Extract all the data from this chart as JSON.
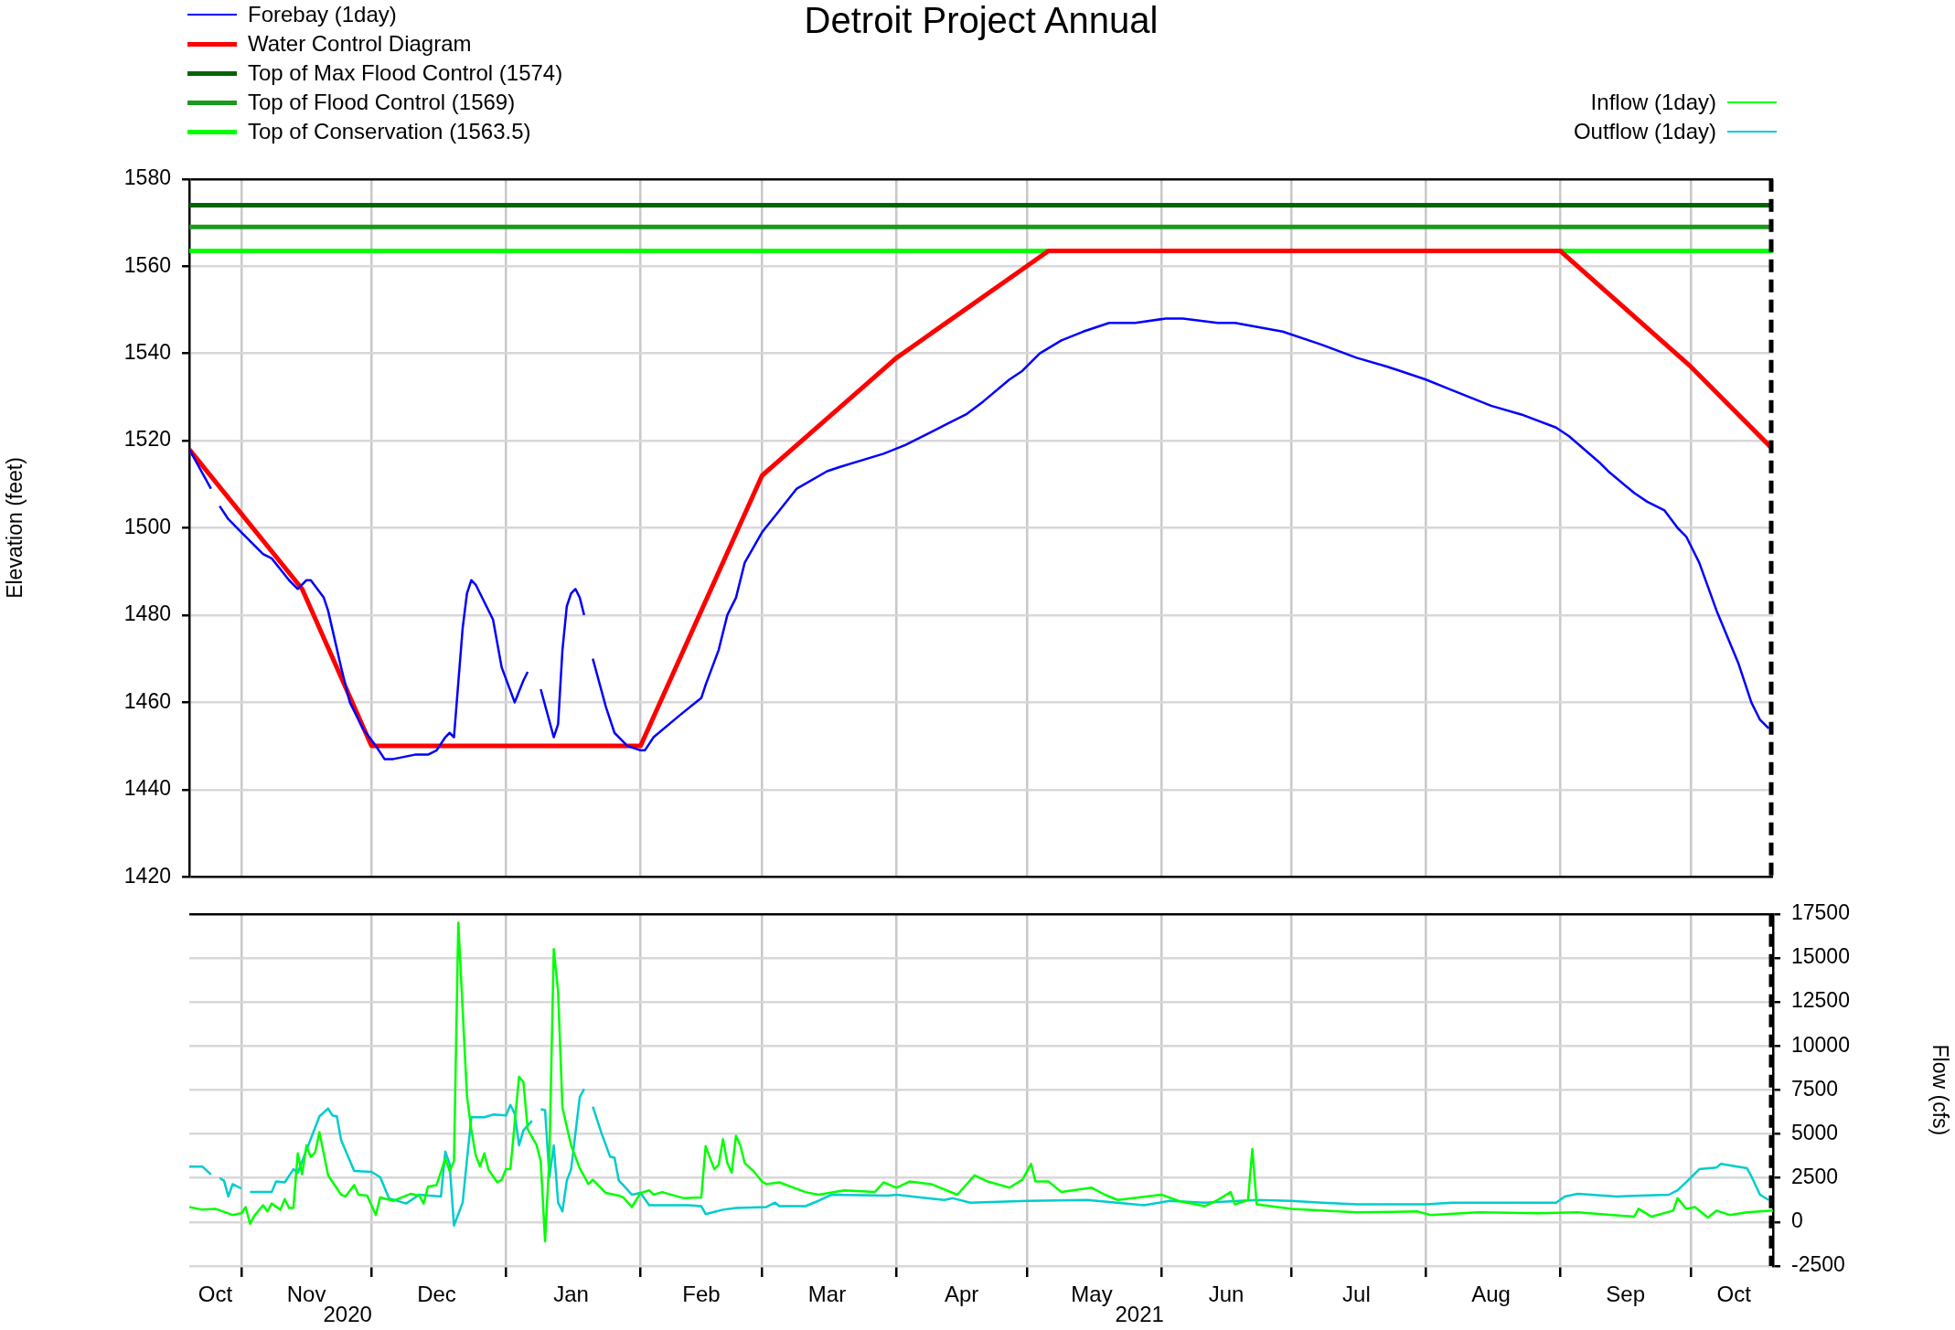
{
  "chart_data": [
    {
      "type": "line",
      "title": "Detroit Project Annual",
      "ylabel": "Elevation (feet)",
      "legend": "top left",
      "grid": true,
      "tick_labels": "y",
      "xlim": [
        "2020-10-20",
        "2021-10-20"
      ],
      "xticks": [
        {
          "value": "2020-11-01",
          "label": null
        },
        {
          "value": "2020-12-01",
          "label": null
        },
        {
          "value": "2021-01-01",
          "label": null
        },
        {
          "value": "2021-02-01",
          "label": null
        },
        {
          "value": "2021-03-01",
          "label": null
        },
        {
          "value": "2021-04-01",
          "label": null
        },
        {
          "value": "2021-05-01",
          "label": null
        },
        {
          "value": "2021-06-01",
          "label": null
        },
        {
          "value": "2021-07-01",
          "label": null
        },
        {
          "value": "2021-08-01",
          "label": null
        },
        {
          "value": "2021-09-01",
          "label": null
        },
        {
          "value": "2021-10-01",
          "label": null
        }
      ],
      "ylim": [
        1420,
        1580
      ],
      "yticks": [
        1420,
        1440,
        1460,
        1480,
        1500,
        1520,
        1540,
        1560,
        1580
      ],
      "ref_lines": [
        {
          "axis": "x",
          "value": "2021-10-20",
          "color": "#000000",
          "line_style": "dashed"
        }
      ],
      "series": [
        {
          "name": "Forebay (1day)",
          "color": "#0000ff",
          "x": [
            "2020-10-20",
            "2020-10-25",
            "2020-10-26",
            "2020-10-27",
            "2020-10-29",
            "2020-11-01",
            "2020-11-06",
            "2020-11-08",
            "2020-11-12",
            "2020-11-14",
            "2020-11-16",
            "2020-11-17",
            "2020-11-20",
            "2020-11-21",
            "2020-11-24",
            "2020-11-26",
            "2020-11-29",
            "2020-12-02",
            "2020-12-04",
            "2020-12-06",
            "2020-12-11",
            "2020-12-14",
            "2020-12-16",
            "2020-12-18",
            "2020-12-19",
            "2020-12-20",
            "2020-12-22",
            "2020-12-23",
            "2020-12-24",
            "2020-12-25",
            "2020-12-29",
            "2020-12-31",
            "2021-01-03",
            "2021-01-05",
            "2021-01-06",
            "2021-01-07",
            "2021-01-09",
            "2021-01-12",
            "2021-01-13",
            "2021-01-14",
            "2021-01-15",
            "2021-01-16",
            "2021-01-17",
            "2021-01-18",
            "2021-01-19",
            "2021-01-20",
            "2021-01-21",
            "2021-01-24",
            "2021-01-26",
            "2021-01-29",
            "2021-02-01",
            "2021-02-02",
            "2021-02-04",
            "2021-02-10",
            "2021-02-15",
            "2021-02-16",
            "2021-02-19",
            "2021-02-21",
            "2021-02-23",
            "2021-02-25",
            "2021-03-01",
            "2021-03-05",
            "2021-03-09",
            "2021-03-16",
            "2021-03-19",
            "2021-03-29",
            "2021-04-03",
            "2021-04-09",
            "2021-04-13",
            "2021-04-17",
            "2021-04-21",
            "2021-04-27",
            "2021-04-30",
            "2021-05-04",
            "2021-05-09",
            "2021-05-14",
            "2021-05-20",
            "2021-05-26",
            "2021-06-02",
            "2021-06-06",
            "2021-06-14",
            "2021-06-18",
            "2021-06-29",
            "2021-07-08",
            "2021-07-16",
            "2021-07-23",
            "2021-08-01",
            "2021-08-06",
            "2021-08-11",
            "2021-08-16",
            "2021-08-23",
            "2021-08-31",
            "2021-09-03",
            "2021-09-10",
            "2021-09-12",
            "2021-09-18",
            "2021-09-21",
            "2021-09-25",
            "2021-09-28",
            "2021-09-30",
            "2021-10-03",
            "2021-10-07",
            "2021-10-12",
            "2021-10-15",
            "2021-10-17",
            "2021-10-19"
          ],
          "values": [
            1518,
            1509,
            null,
            1505,
            1502,
            1499,
            1494,
            1493,
            1488,
            1486,
            1488,
            1488,
            1484,
            1481,
            1468,
            1460,
            1454,
            1450,
            1447,
            1447,
            1448,
            1448,
            1449,
            1452,
            1453,
            1452,
            1477,
            1485,
            1488,
            1487,
            1479,
            1468,
            1460,
            1465,
            1467,
            null,
            1463,
            1452,
            1455,
            1472,
            1482,
            1485,
            1486,
            1484,
            1480,
            null,
            1470,
            1459,
            1453,
            1450,
            1449,
            1449,
            1452,
            1457,
            1461,
            1464,
            1472,
            1480,
            1484,
            1492,
            1499,
            1504,
            1509,
            1513,
            1514,
            1517,
            1519,
            1522,
            1524,
            1526,
            1529,
            1534,
            1536,
            1540,
            1543,
            1545,
            1547,
            1547,
            1548,
            1548,
            1547,
            1547,
            1545,
            1542,
            1539,
            1537,
            1534,
            1532,
            1530,
            1528,
            1526,
            1523,
            1521,
            1515,
            1513,
            1508,
            1506,
            1504,
            1500,
            1498,
            1492,
            1481,
            1469,
            1460,
            1456,
            1454
          ]
        },
        {
          "name": "Water Control Diagram",
          "color": "#ff0000",
          "x": [
            "2020-10-20",
            "2020-11-15",
            "2020-12-01",
            "2021-02-01",
            "2021-03-01",
            "2021-04-01",
            "2021-05-01",
            "2021-05-06",
            "2021-09-01",
            "2021-10-01",
            "2021-10-20"
          ],
          "values": [
            1518,
            1486,
            1450,
            1450,
            1512,
            1539,
            1560,
            1563.5,
            1563.5,
            1537,
            1518
          ]
        },
        {
          "name": "Top of Max Flood Control (1574)",
          "color": "#006400",
          "x": [
            "2020-10-20",
            "2021-10-20"
          ],
          "values": [
            1574,
            1574
          ]
        },
        {
          "name": "Top of Flood Control (1569)",
          "color": "#1a9a1a",
          "x": [
            "2020-10-20",
            "2021-10-20"
          ],
          "values": [
            1569,
            1569
          ]
        },
        {
          "name": "Top of Conservation (1563.5)",
          "color": "#00ff00",
          "x": [
            "2020-10-20",
            "2021-10-20"
          ],
          "values": [
            1563.5,
            1563.5
          ]
        }
      ]
    },
    {
      "type": "line",
      "y2label": "Flow (cfs)",
      "legend": "top right",
      "grid": true,
      "xlim": [
        "2020-10-20",
        "2021-10-20"
      ],
      "xticks": [
        {
          "value": "2020-10-26",
          "label": "Oct"
        },
        {
          "value": "2020-11-01",
          "label": null
        },
        {
          "value": "2020-11-16",
          "label": "Nov"
        },
        {
          "value": "2020-12-01",
          "label": null
        },
        {
          "value": "2020-12-16",
          "label": "Dec"
        },
        {
          "value": "2021-01-01",
          "label": null
        },
        {
          "value": "2021-01-16",
          "label": "Jan"
        },
        {
          "value": "2021-02-01",
          "label": null
        },
        {
          "value": "2021-02-15",
          "label": "Feb"
        },
        {
          "value": "2021-03-01",
          "label": null
        },
        {
          "value": "2021-03-16",
          "label": "Mar"
        },
        {
          "value": "2021-04-01",
          "label": null
        },
        {
          "value": "2021-04-16",
          "label": "Apr"
        },
        {
          "value": "2021-05-01",
          "label": null
        },
        {
          "value": "2021-05-16",
          "label": "May"
        },
        {
          "value": "2021-06-01",
          "label": null
        },
        {
          "value": "2021-06-16",
          "label": "Jun"
        },
        {
          "value": "2021-07-01",
          "label": null
        },
        {
          "value": "2021-07-16",
          "label": "Jul"
        },
        {
          "value": "2021-08-01",
          "label": null
        },
        {
          "value": "2021-08-16",
          "label": "Aug"
        },
        {
          "value": "2021-09-01",
          "label": null
        },
        {
          "value": "2021-09-16",
          "label": "Sep"
        },
        {
          "value": "2021-10-01",
          "label": null
        },
        {
          "value": "2021-10-11",
          "label": "Oct"
        }
      ],
      "y2lim": [
        -2500,
        17500
      ],
      "y2ticks": [
        -2500,
        0,
        2500,
        5000,
        7500,
        10000,
        12500,
        15000,
        17500
      ],
      "annotations": [
        "2020",
        "2021"
      ],
      "ref_lines": [
        {
          "axis": "x",
          "value": "2021-10-20",
          "color": "#000000",
          "line_style": "dashed"
        }
      ],
      "series": [
        {
          "name": "Inflow (1day)",
          "color": "#00ff00",
          "axis": "y2",
          "x": [
            "2020-10-20",
            "2020-10-23",
            "2020-10-26",
            "2020-10-30",
            "2020-11-01",
            "2020-11-02",
            "2020-11-03",
            "2020-11-04",
            "2020-11-06",
            "2020-11-07",
            "2020-11-08",
            "2020-11-10",
            "2020-11-11",
            "2020-11-12",
            "2020-11-13",
            "2020-11-14",
            "2020-11-15",
            "2020-11-16",
            "2020-11-17",
            "2020-11-18",
            "2020-11-19",
            "2020-11-21",
            "2020-11-24",
            "2020-11-25",
            "2020-11-27",
            "2020-11-28",
            "2020-11-30",
            "2020-12-02",
            "2020-12-03",
            "2020-12-06",
            "2020-12-08",
            "2020-12-10",
            "2020-12-12",
            "2020-12-13",
            "2020-12-14",
            "2020-12-16",
            "2020-12-18",
            "2020-12-19",
            "2020-12-20",
            "2020-12-21",
            "2020-12-23",
            "2020-12-24",
            "2020-12-25",
            "2020-12-26",
            "2020-12-27",
            "2020-12-28",
            "2020-12-30",
            "2020-12-31",
            "2021-01-01",
            "2021-01-02",
            "2021-01-04",
            "2021-01-05",
            "2021-01-06",
            "2021-01-08",
            "2021-01-09",
            "2021-01-10",
            "2021-01-11",
            "2021-01-12",
            "2021-01-13",
            "2021-01-14",
            "2021-01-16",
            "2021-01-18",
            "2021-01-20",
            "2021-01-21",
            "2021-01-24",
            "2021-01-27",
            "2021-01-28",
            "2021-01-30",
            "2021-02-01",
            "2021-02-03",
            "2021-02-04",
            "2021-02-06",
            "2021-02-11",
            "2021-02-15",
            "2021-02-16",
            "2021-02-18",
            "2021-02-19",
            "2021-02-20",
            "2021-02-21",
            "2021-02-22",
            "2021-02-23",
            "2021-02-24",
            "2021-02-25",
            "2021-02-27",
            "2021-03-01",
            "2021-03-02",
            "2021-03-05",
            "2021-03-11",
            "2021-03-14",
            "2021-03-20",
            "2021-03-27",
            "2021-03-29",
            "2021-04-01",
            "2021-04-04",
            "2021-04-09",
            "2021-04-15",
            "2021-04-19",
            "2021-04-22",
            "2021-04-27",
            "2021-04-30",
            "2021-05-02",
            "2021-05-03",
            "2021-05-06",
            "2021-05-09",
            "2021-05-16",
            "2021-05-19",
            "2021-05-22",
            "2021-06-01",
            "2021-06-05",
            "2021-06-11",
            "2021-06-14",
            "2021-06-17",
            "2021-06-18",
            "2021-06-21",
            "2021-06-22",
            "2021-06-23",
            "2021-07-01",
            "2021-07-08",
            "2021-07-16",
            "2021-07-30",
            "2021-08-02",
            "2021-08-13",
            "2021-08-27",
            "2021-09-05",
            "2021-09-18",
            "2021-09-19",
            "2021-09-22",
            "2021-09-27",
            "2021-09-28",
            "2021-09-30",
            "2021-10-02",
            "2021-10-05",
            "2021-10-07",
            "2021-10-10",
            "2021-10-14",
            "2021-10-20"
          ],
          "values": [
            850,
            700,
            750,
            400,
            500,
            850,
            -100,
            350,
            950,
            600,
            1050,
            700,
            1300,
            800,
            800,
            3900,
            2700,
            4350,
            3700,
            3950,
            5100,
            2650,
            1550,
            1450,
            2100,
            1550,
            1500,
            400,
            1400,
            1200,
            1400,
            1600,
            1500,
            1050,
            2000,
            2100,
            3600,
            2900,
            3450,
            17000,
            7150,
            5250,
            3800,
            3150,
            3900,
            2950,
            2250,
            2400,
            3000,
            3000,
            8250,
            7950,
            5250,
            4400,
            3450,
            -1100,
            3700,
            15500,
            13100,
            6500,
            4350,
            3050,
            2150,
            2400,
            1650,
            1500,
            1400,
            850,
            1650,
            1800,
            1550,
            1700,
            1350,
            1400,
            4300,
            3000,
            3250,
            4700,
            3350,
            2800,
            4900,
            4350,
            3350,
            2900,
            2300,
            2150,
            2250,
            1700,
            1550,
            1800,
            1700,
            2250,
            1950,
            2300,
            2150,
            1550,
            2650,
            2300,
            1950,
            2400,
            3300,
            2300,
            2300,
            1700,
            1950,
            1550,
            1250,
            1550,
            1200,
            900,
            1250,
            1700,
            1000,
            1250,
            4150,
            1000,
            750,
            650,
            550,
            600,
            400,
            550,
            500,
            550,
            300,
            750,
            300,
            650,
            1350,
            750,
            850,
            250,
            650,
            400,
            550,
            650
          ]
        },
        {
          "name": "Outflow (1day)",
          "color": "#00cccc",
          "axis": "y2",
          "x": [
            "2020-10-20",
            "2020-10-23",
            "2020-10-25",
            "2020-10-26",
            "2020-10-27",
            "2020-10-28",
            "2020-10-29",
            "2020-10-30",
            "2020-11-01",
            "2020-11-02",
            "2020-11-03",
            "2020-11-08",
            "2020-11-09",
            "2020-11-11",
            "2020-11-13",
            "2020-11-14",
            "2020-11-19",
            "2020-11-21",
            "2020-11-22",
            "2020-11-23",
            "2020-11-24",
            "2020-11-27",
            "2020-12-01",
            "2020-12-03",
            "2020-12-05",
            "2020-12-09",
            "2020-12-12",
            "2020-12-17",
            "2020-12-18",
            "2020-12-19",
            "2020-12-20",
            "2020-12-22",
            "2020-12-24",
            "2020-12-27",
            "2020-12-29",
            "2021-01-01",
            "2021-01-02",
            "2021-01-03",
            "2021-01-04",
            "2021-01-05",
            "2021-01-07",
            "2021-01-08",
            "2021-01-09",
            "2021-01-10",
            "2021-01-11",
            "2021-01-12",
            "2021-01-13",
            "2021-01-14",
            "2021-01-15",
            "2021-01-16",
            "2021-01-18",
            "2021-01-19",
            "2021-01-20",
            "2021-01-21",
            "2021-01-23",
            "2021-01-25",
            "2021-01-26",
            "2021-01-27",
            "2021-01-28",
            "2021-01-30",
            "2021-02-01",
            "2021-02-03",
            "2021-02-12",
            "2021-02-15",
            "2021-02-16",
            "2021-02-20",
            "2021-02-23",
            "2021-03-02",
            "2021-03-04",
            "2021-03-05",
            "2021-03-11",
            "2021-03-14",
            "2021-03-17",
            "2021-03-30",
            "2021-04-01",
            "2021-04-12",
            "2021-04-14",
            "2021-04-18",
            "2021-05-01",
            "2021-05-15",
            "2021-05-28",
            "2021-06-03",
            "2021-06-11",
            "2021-06-23",
            "2021-07-01",
            "2021-07-08",
            "2021-07-16",
            "2021-07-27",
            "2021-08-01",
            "2021-08-07",
            "2021-08-21",
            "2021-08-31",
            "2021-09-02",
            "2021-09-05",
            "2021-09-14",
            "2021-09-26",
            "2021-09-28",
            "2021-10-01",
            "2021-10-03",
            "2021-10-07",
            "2021-10-08",
            "2021-10-14",
            "2021-10-15",
            "2021-10-17",
            "2021-10-19"
          ],
          "values": [
            3150,
            3150,
            2700,
            null,
            2500,
            2350,
            1450,
            2150,
            1900,
            null,
            1700,
            1700,
            2300,
            2250,
            3000,
            2800,
            6000,
            6450,
            6050,
            6000,
            4650,
            2900,
            2850,
            2550,
            1350,
            1050,
            1550,
            1450,
            4000,
            3300,
            -200,
            1100,
            5950,
            5950,
            6100,
            6050,
            6650,
            6150,
            4350,
            5200,
            5750,
            null,
            6400,
            6350,
            2550,
            4350,
            1100,
            600,
            2350,
            3000,
            7100,
            7550,
            null,
            6550,
            5050,
            3700,
            3650,
            2350,
            2100,
            1550,
            1650,
            950,
            950,
            900,
            450,
            700,
            800,
            850,
            1100,
            900,
            900,
            1200,
            1550,
            1500,
            1550,
            1250,
            1350,
            1100,
            1200,
            1250,
            950,
            1200,
            1100,
            1250,
            1200,
            1100,
            1000,
            1000,
            1000,
            1100,
            1100,
            1100,
            1450,
            1600,
            1450,
            1550,
            1800,
            2500,
            3000,
            3100,
            3300,
            3050,
            2600,
            1550,
            1250
          ]
        }
      ]
    }
  ]
}
